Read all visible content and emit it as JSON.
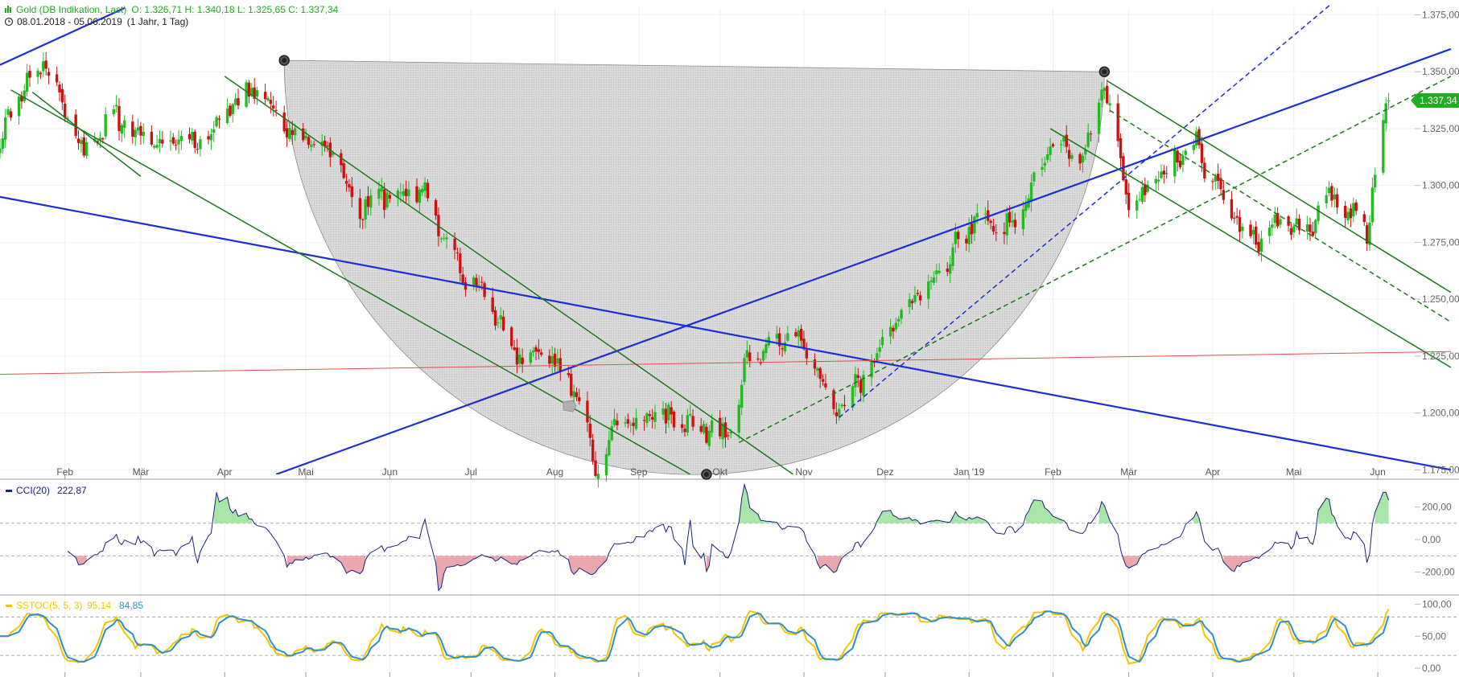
{
  "header": {
    "instrument": "Gold (DB Indikation, Last)",
    "ohlc": "O: 1.326,71  H: 1.340,18  L: 1.325,65  C: 1.337,34",
    "range": "08.01.2018 - 05.06.2019",
    "period": "(1 Jahr, 1 Tag)"
  },
  "colors": {
    "up": "#22bb22",
    "down": "#cc1111",
    "trend_blue": "#1a2fd6",
    "trend_green": "#1a7a1a",
    "support_red": "#e05050",
    "last_price_bg": "#1fae1f",
    "cci_line": "#1a237e",
    "sstoc_k": "#f5c400",
    "sstoc_d": "#2f8fc8"
  },
  "last_price": "1.337,34",
  "chart_data": [
    {
      "type": "candlestick",
      "title": "Gold (DB Indikation, Last)",
      "x_range": [
        "08.01.2018",
        "05.06.2019"
      ],
      "y_ticks": [
        "1.375,00",
        "1.350,00",
        "1.325,00",
        "1.300,00",
        "1.275,00",
        "1.250,00",
        "1.225,00",
        "1.200,00",
        "1.175,00"
      ],
      "ylim": [
        1173,
        1378
      ],
      "x_tick_labels": [
        "Feb",
        "Mär",
        "Apr",
        "Mai",
        "Jun",
        "Jul",
        "Aug",
        "Sep",
        "Okt",
        "Nov",
        "Dez",
        "Jan '19",
        "Feb",
        "Mär",
        "Apr",
        "Mai",
        "Jun"
      ],
      "close_anchors": [
        [
          "2018-01-08",
          1320
        ],
        [
          "2018-01-15",
          1340
        ],
        [
          "2018-01-25",
          1355
        ],
        [
          "2018-02-08",
          1315
        ],
        [
          "2018-02-20",
          1330
        ],
        [
          "2018-03-05",
          1320
        ],
        [
          "2018-03-20",
          1318
        ],
        [
          "2018-04-05",
          1335
        ],
        [
          "2018-04-12",
          1345
        ],
        [
          "2018-04-26",
          1322
        ],
        [
          "2018-05-10",
          1318
        ],
        [
          "2018-05-21",
          1290
        ],
        [
          "2018-06-01",
          1296
        ],
        [
          "2018-06-14",
          1298
        ],
        [
          "2018-06-25",
          1265
        ],
        [
          "2018-07-05",
          1255
        ],
        [
          "2018-07-19",
          1225
        ],
        [
          "2018-07-30",
          1225
        ],
        [
          "2018-08-08",
          1212
        ],
        [
          "2018-08-16",
          1178
        ],
        [
          "2018-08-24",
          1195
        ],
        [
          "2018-09-05",
          1198
        ],
        [
          "2018-09-14",
          1197
        ],
        [
          "2018-09-28",
          1192
        ],
        [
          "2018-10-05",
          1190
        ],
        [
          "2018-10-11",
          1225
        ],
        [
          "2018-10-25",
          1232
        ],
        [
          "2018-11-01",
          1232
        ],
        [
          "2018-11-13",
          1200
        ],
        [
          "2018-11-26",
          1222
        ],
        [
          "2018-12-04",
          1238
        ],
        [
          "2018-12-20",
          1262
        ],
        [
          "2019-01-04",
          1285
        ],
        [
          "2019-01-18",
          1282
        ],
        [
          "2019-01-31",
          1318
        ],
        [
          "2019-02-12",
          1312
        ],
        [
          "2019-02-20",
          1344
        ],
        [
          "2019-03-01",
          1290
        ],
        [
          "2019-03-12",
          1302
        ],
        [
          "2019-03-25",
          1320
        ],
        [
          "2019-04-05",
          1292
        ],
        [
          "2019-04-16",
          1275
        ],
        [
          "2019-04-25",
          1282
        ],
        [
          "2019-05-06",
          1280
        ],
        [
          "2019-05-14",
          1296
        ],
        [
          "2019-05-24",
          1285
        ],
        [
          "2019-05-28",
          1280
        ],
        [
          "2019-05-31",
          1305
        ],
        [
          "2019-06-05",
          1337.34
        ]
      ],
      "marked_points": [
        [
          "2018-04-23",
          1355
        ],
        [
          "2018-09-26",
          1173
        ],
        [
          "2019-02-20",
          1350
        ]
      ],
      "overlays": [
        {
          "type": "rounding-bottom-region"
        },
        {
          "type": "trendline",
          "style": "solid",
          "color": "trend_blue",
          "from": [
            "2018-01-08",
            1353
          ],
          "to": [
            "2018-02-23",
            1378
          ]
        },
        {
          "type": "trendline",
          "style": "solid",
          "color": "trend_blue",
          "from": [
            "2018-01-08",
            1295
          ],
          "to": [
            "2019-06-28",
            1175
          ]
        },
        {
          "type": "trendline",
          "style": "solid",
          "color": "trend_blue",
          "from": [
            "2018-04-20",
            1173
          ],
          "to": [
            "2019-06-28",
            1360
          ]
        },
        {
          "type": "trendline",
          "style": "dashed",
          "color": "trend_blue",
          "from": [
            "2018-11-14",
            1198
          ],
          "to": [
            "2019-05-15",
            1380
          ]
        },
        {
          "type": "trendline",
          "style": "solid",
          "color": "support_red",
          "from": [
            "2018-01-08",
            1217
          ],
          "to": [
            "2019-06-28",
            1227
          ]
        },
        {
          "type": "trendline",
          "style": "solid",
          "color": "trend_green",
          "from": [
            "2018-01-12",
            1342
          ],
          "to": [
            "2018-09-20",
            1173
          ]
        },
        {
          "type": "trendline",
          "style": "solid",
          "color": "trend_green",
          "from": [
            "2018-01-20",
            1341
          ],
          "to": [
            "2018-03-01",
            1304
          ]
        },
        {
          "type": "trendline",
          "style": "solid",
          "color": "trend_green",
          "from": [
            "2018-04-01",
            1348
          ],
          "to": [
            "2018-10-28",
            1173
          ]
        },
        {
          "type": "trendline",
          "style": "dashed",
          "color": "trend_green",
          "from": [
            "2018-10-08",
            1187
          ],
          "to": [
            "2019-06-28",
            1348
          ]
        },
        {
          "type": "trendline",
          "style": "solid",
          "color": "trend_green",
          "from": [
            "2019-01-31",
            1325
          ],
          "to": [
            "2019-06-28",
            1220
          ]
        },
        {
          "type": "trendline",
          "style": "solid",
          "color": "trend_green",
          "from": [
            "2019-02-21",
            1346
          ],
          "to": [
            "2019-06-28",
            1253
          ]
        },
        {
          "type": "trendline",
          "style": "dashed",
          "color": "trend_green",
          "from": [
            "2019-02-22",
            1333
          ],
          "to": [
            "2019-06-28",
            1240
          ]
        }
      ]
    },
    {
      "type": "line",
      "title": "CCI(20)",
      "value_text": "222,87",
      "y_ticks": [
        "200,00",
        "0,00",
        "-200,00"
      ],
      "ylim": [
        -330,
        360
      ],
      "guides": [
        100,
        -100
      ],
      "fill_above": 100,
      "fill_below": -100
    },
    {
      "type": "line",
      "title": "SSTOC(5, 5, 3)",
      "value_k": "95,14",
      "value_d": "84,85",
      "y_ticks": [
        "100,00",
        "50,00",
        "0,00"
      ],
      "ylim": [
        -5,
        112
      ],
      "guides": [
        80,
        20
      ]
    }
  ]
}
